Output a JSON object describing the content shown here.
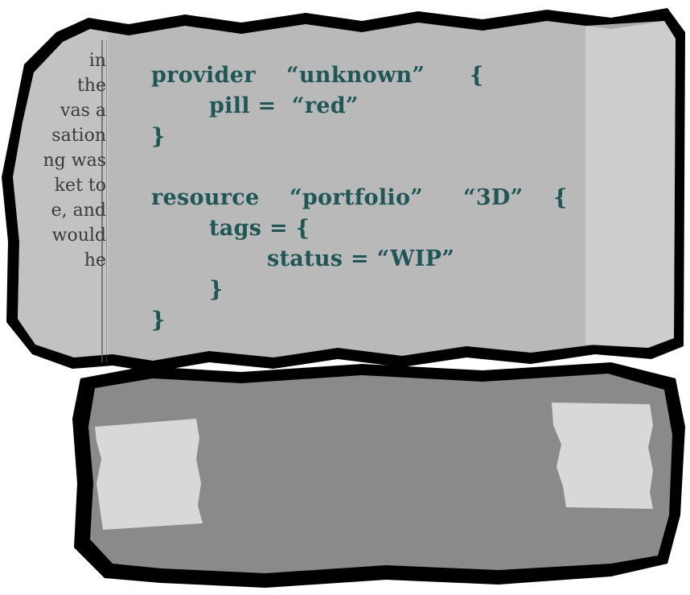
{
  "colors": {
    "outline": "#000000",
    "torn_paper": "#b9b9b9",
    "paper_light": "#d4d4d4",
    "card": "#8a8a8a",
    "tape": "#dcdcdc",
    "code_text": "#1f5656",
    "newsprint_text": "#3a3a3a"
  },
  "newsprint": {
    "lines": [
      "in",
      "",
      "the",
      "vas a",
      "sation",
      "ng was",
      "",
      "ket to",
      "e, and",
      "",
      "would",
      "he"
    ]
  },
  "code": {
    "l1_kw": "provider",
    "l1_str": "“unknown”",
    "l1_brace": "{",
    "l2": "pill =  “red”",
    "l3": "}",
    "l4_kw": "resource",
    "l4_str1": "“portfolio”",
    "l4_str2": "“3D”",
    "l4_brace": "{",
    "l5": "tags = {",
    "l6": "status = “WIP”",
    "l7": "}",
    "l8": "}"
  }
}
